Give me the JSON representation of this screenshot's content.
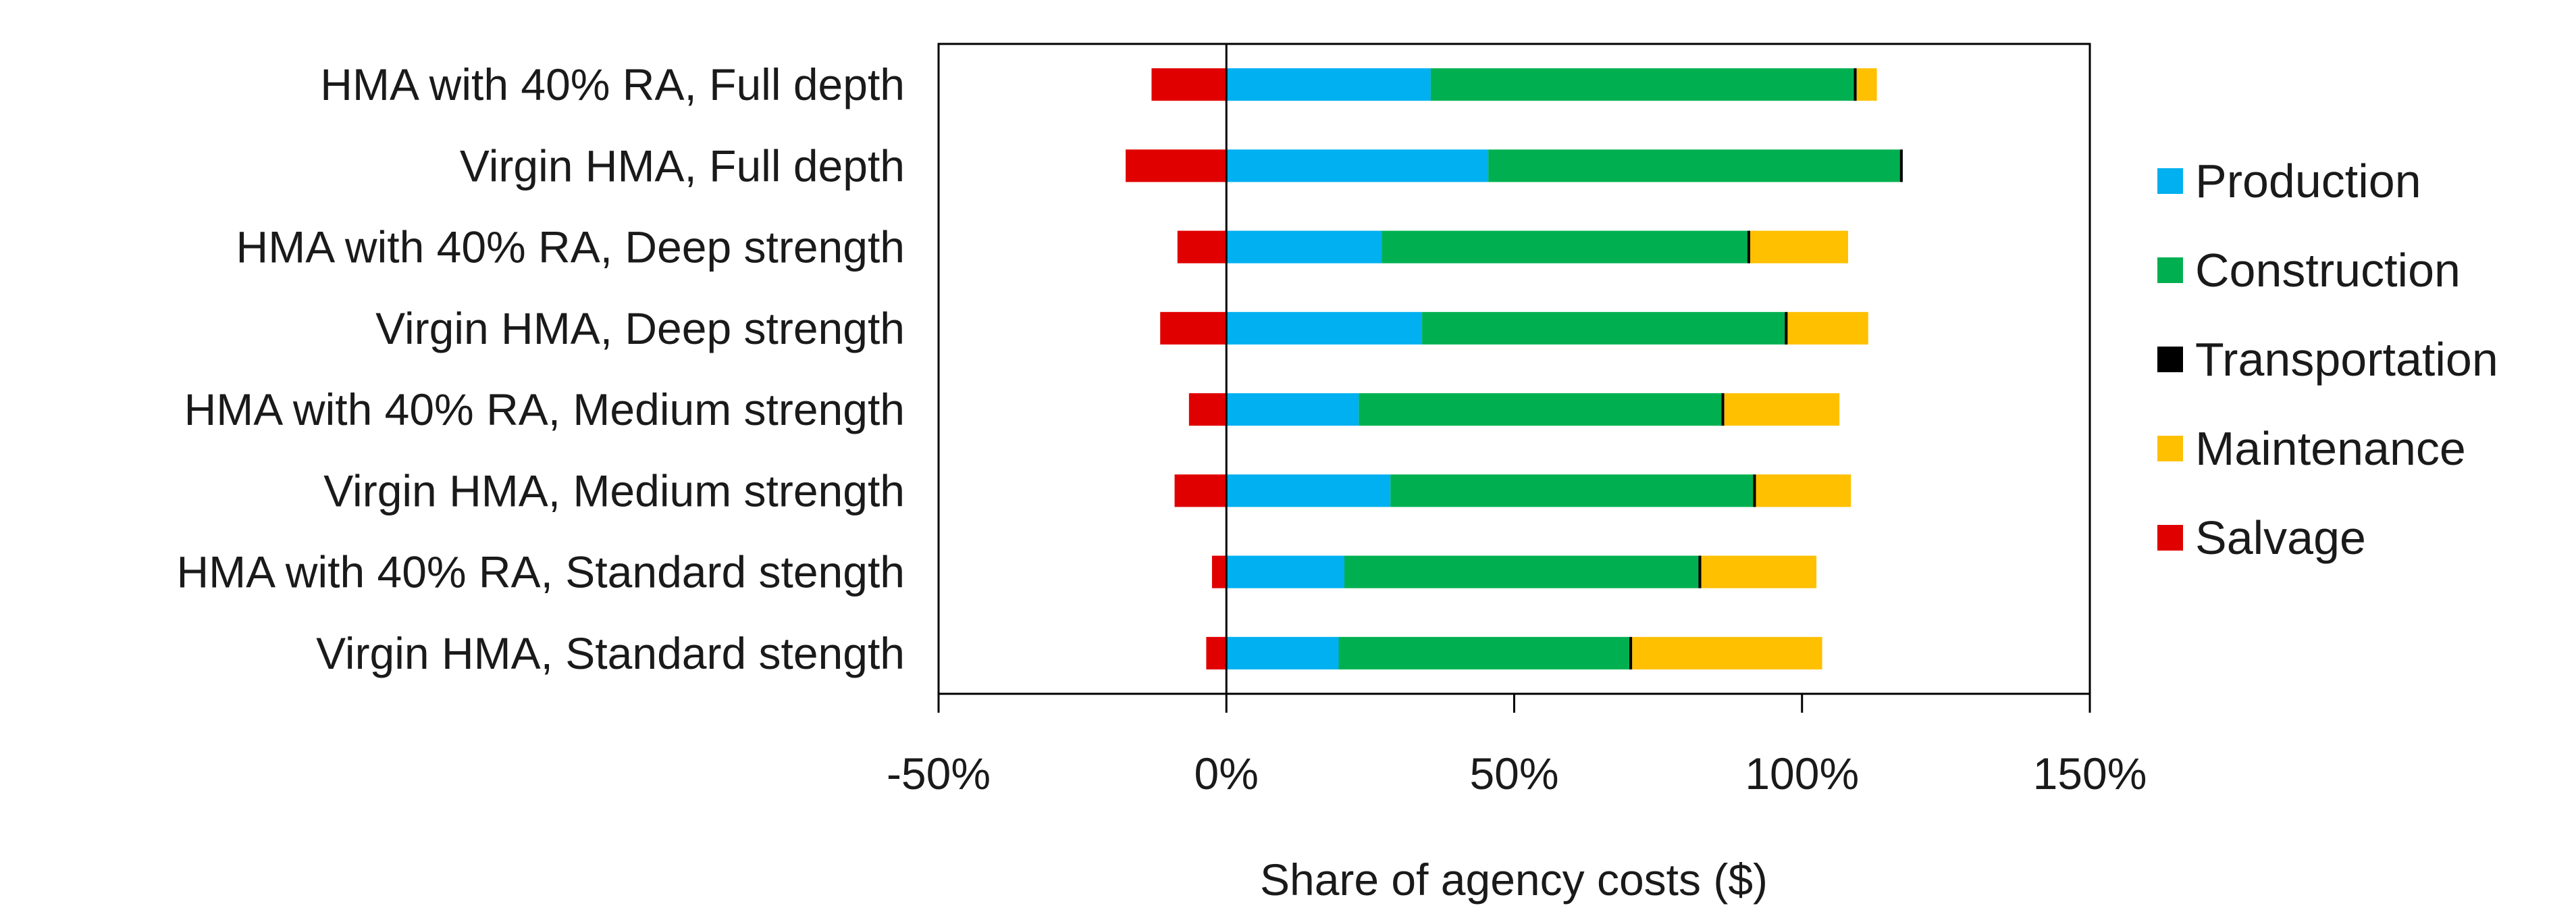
{
  "chart_data": {
    "type": "bar",
    "orientation": "horizontal",
    "stacked": true,
    "title": "",
    "xlabel": "Share of agency costs ($)",
    "ylabel": "",
    "xlim": [
      -50,
      150
    ],
    "xticks": [
      -50,
      0,
      50,
      100,
      150
    ],
    "xtick_labels": [
      "-50%",
      "0%",
      "50%",
      "100%",
      "150%"
    ],
    "grid": false,
    "legend_position": "right",
    "categories": [
      "HMA with 40% RA, Full depth",
      "Virgin HMA, Full depth",
      "HMA with 40% RA, Deep strength",
      "Virgin HMA, Deep strength",
      "HMA with 40% RA, Medium strength",
      "Virgin HMA, Medium strength",
      "HMA with 40% RA, Standard stength",
      "Virgin HMA, Standard stength"
    ],
    "series": [
      {
        "name": "Production",
        "color": "#00b0f0",
        "values": [
          35.5,
          45.5,
          27,
          34,
          23,
          28.5,
          20.5,
          19.5
        ]
      },
      {
        "name": "Construction",
        "color": "#00b050",
        "values": [
          73.5,
          71.5,
          63.5,
          63,
          63,
          63,
          61.5,
          50.5
        ]
      },
      {
        "name": "Transportation",
        "color": "#000000",
        "values": [
          0.5,
          0.5,
          0.5,
          0.5,
          0.5,
          0.5,
          0.5,
          0.5
        ]
      },
      {
        "name": "Maintenance",
        "color": "#ffc000",
        "values": [
          3.5,
          0,
          17,
          14,
          20,
          16.5,
          20,
          33
        ]
      },
      {
        "name": "Salvage",
        "color": "#e00000",
        "values": [
          -13,
          -17.5,
          -8.5,
          -11.5,
          -6.5,
          -9,
          -2.5,
          -3.5
        ]
      }
    ]
  }
}
